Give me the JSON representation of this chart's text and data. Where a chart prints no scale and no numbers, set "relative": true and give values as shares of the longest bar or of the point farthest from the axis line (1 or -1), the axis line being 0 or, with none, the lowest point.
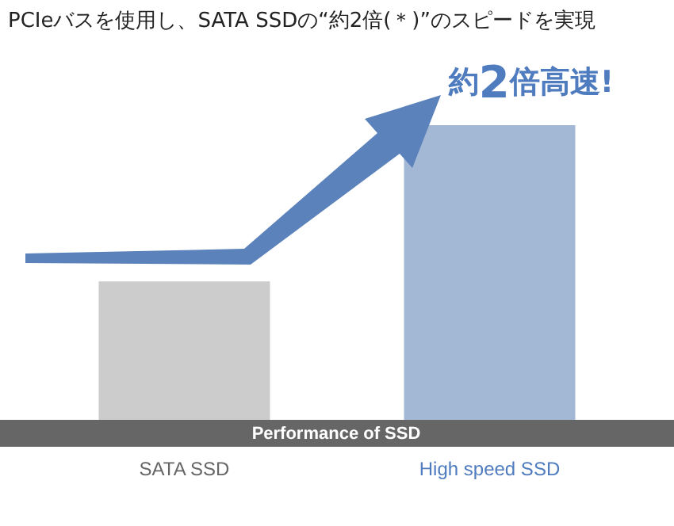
{
  "chart_data": {
    "type": "bar",
    "title": "PCIeバスを使用し、SATA SSDの“約2倍(＊)”のスピードを実現",
    "xlabel": "Performance of SSD",
    "categories": [
      "SATA SSD",
      "High speed SSD"
    ],
    "values": [
      0.47,
      1
    ],
    "colors": [
      "#cccccc",
      "#a3b8d4"
    ],
    "relative": true,
    "grid": false,
    "annotations": [
      "約2倍高速!"
    ]
  }
}
